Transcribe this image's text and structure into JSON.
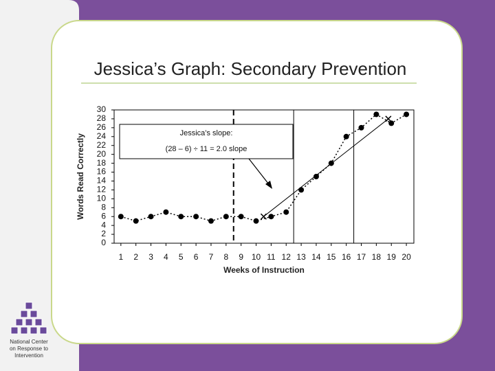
{
  "title": "Jessica’s Graph: Secondary Prevention",
  "logo_text": [
    "National Center",
    "on Response to",
    "Intervention"
  ],
  "chart_data": {
    "type": "line",
    "x_label": "Weeks of Instruction",
    "y_label": "Words Read Correctly",
    "annotation": [
      "Jessica’s slope:",
      "(28 – 6) ÷ 11 = 2.0 slope"
    ],
    "x": [
      1,
      2,
      3,
      4,
      5,
      6,
      7,
      8,
      9,
      10,
      11,
      12,
      13,
      14,
      15,
      16,
      17,
      18,
      19,
      20
    ],
    "series": [
      {
        "color": "#000000",
        "values": [
          6,
          5,
          6,
          7,
          6,
          6,
          5,
          6,
          6,
          5,
          6,
          7,
          12,
          15,
          18,
          24,
          26,
          29,
          27,
          29
        ]
      }
    ],
    "slope_line": {
      "x": [
        10.5,
        18.8
      ],
      "y": [
        6,
        28
      ]
    },
    "phase_lines": [
      {
        "x": 8.5,
        "style": "dashed"
      },
      {
        "x": 12.5,
        "style": "solid"
      },
      {
        "x": 16.5,
        "style": "solid"
      }
    ],
    "xlim": [
      0.55,
      20.5
    ],
    "xticks": [
      1,
      2,
      3,
      4,
      5,
      6,
      7,
      8,
      9,
      10,
      11,
      12,
      13,
      14,
      15,
      16,
      17,
      18,
      19,
      20
    ],
    "ylim": [
      0,
      30
    ],
    "yticks": [
      0,
      2,
      4,
      6,
      8,
      10,
      12,
      14,
      16,
      18,
      20,
      22,
      24,
      26,
      28,
      30
    ]
  }
}
